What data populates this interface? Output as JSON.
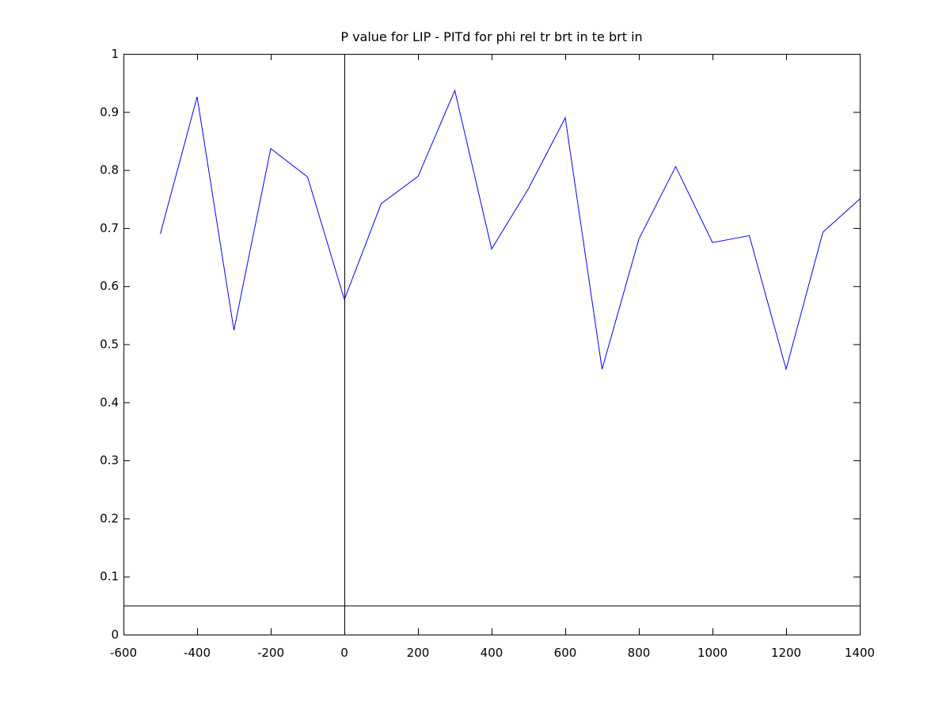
{
  "chart_data": {
    "type": "line",
    "title": "P value for LIP - PITd for phi rel tr brt in te brt in",
    "xlabel": "",
    "ylabel": "",
    "xlim": [
      -600,
      1400
    ],
    "ylim": [
      0,
      1
    ],
    "x_ticks": [
      "-600",
      "-400",
      "-200",
      "0",
      "200",
      "400",
      "600",
      "800",
      "1000",
      "1200",
      "1400"
    ],
    "y_ticks": [
      "0",
      "0.1",
      "0.2",
      "0.3",
      "0.4",
      "0.5",
      "0.6",
      "0.7",
      "0.8",
      "0.9",
      "1"
    ],
    "grid": false,
    "series": [
      {
        "color": "#0000ff",
        "x": [
          -500,
          -400,
          -300,
          -200,
          -100,
          0,
          100,
          200,
          300,
          400,
          500,
          600,
          700,
          800,
          900,
          1000,
          1100,
          1200,
          1300,
          1400
        ],
        "y": [
          0.69,
          0.926,
          0.524,
          0.837,
          0.788,
          0.577,
          0.742,
          0.789,
          0.937,
          0.664,
          0.768,
          0.89,
          0.457,
          0.681,
          0.806,
          0.675,
          0.687,
          0.457,
          0.693,
          0.75
        ]
      }
    ],
    "reference_lines": {
      "vertical_x": 0,
      "horizontal_y": 0.05,
      "color": "#000000"
    }
  }
}
